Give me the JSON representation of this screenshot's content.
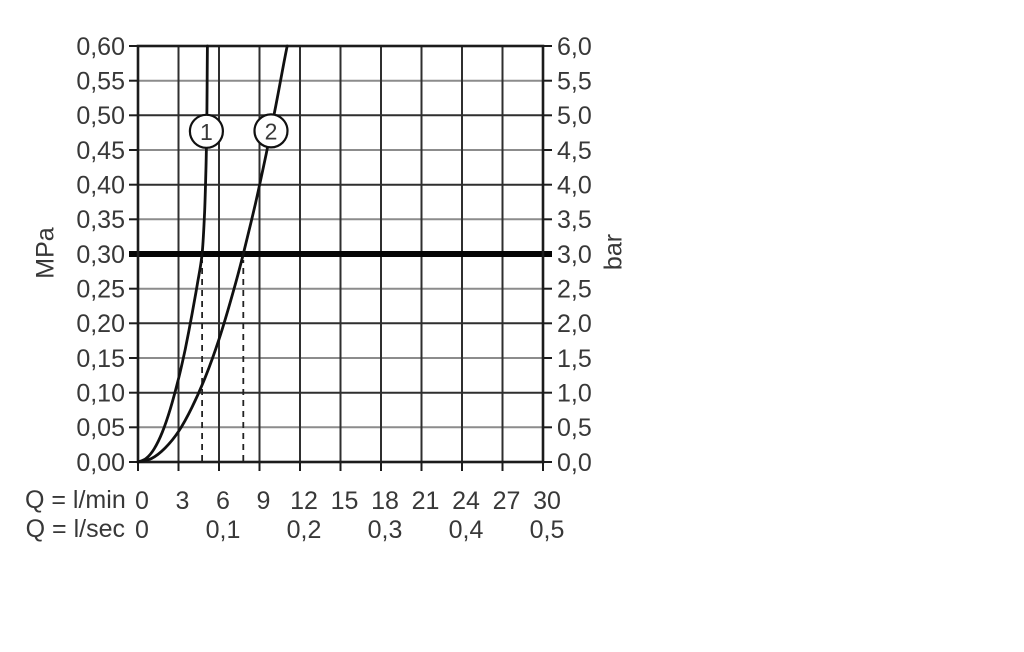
{
  "chart_data": {
    "type": "line",
    "grid": true,
    "legend": "none",
    "y_axis_left": {
      "unit": "MPa",
      "min": 0,
      "max": 0.6,
      "step": 0.05,
      "tick_labels": [
        "0,60",
        "0,55",
        "0,50",
        "0,45",
        "0,40",
        "0,35",
        "0,30",
        "0,25",
        "0,20",
        "0,15",
        "0,10",
        "0,05",
        "0,00"
      ]
    },
    "y_axis_right": {
      "unit": "bar",
      "min": 0,
      "max": 6,
      "step": 0.5,
      "tick_labels": [
        "6,0",
        "5,5",
        "5,0",
        "4,5",
        "4,0",
        "3,5",
        "3,0",
        "2,5",
        "2,0",
        "1,5",
        "1,0",
        "0,5",
        "0,0"
      ]
    },
    "x_axis_primary": {
      "label": "Q = l/min",
      "min": 0,
      "max": 30,
      "step": 3,
      "tick_values": [
        0,
        3,
        6,
        9,
        12,
        15,
        18,
        21,
        24,
        27,
        30
      ],
      "tick_labels": [
        "0",
        "3",
        "6",
        "9",
        "12",
        "15",
        "18",
        "21",
        "24",
        "27",
        "30"
      ]
    },
    "x_axis_secondary": {
      "label": "Q = l/sec",
      "tick_labels": [
        "0",
        "0,1",
        "0,2",
        "0,3",
        "0,4",
        "0,5"
      ],
      "tick_positions_lmin": [
        0,
        6,
        12,
        18,
        24,
        30
      ]
    },
    "reference_line": {
      "mpa": 0.3,
      "bar": 3.0
    },
    "dashed_guides": [
      {
        "curve": "1",
        "lmin": 4.75,
        "top_mpa": 0.3
      },
      {
        "curve": "2",
        "lmin": 7.8,
        "top_mpa": 0.3
      }
    ],
    "series": [
      {
        "label": "1",
        "flow_at_3_bar_lmin": 4.75,
        "points_lmin_mpa": [
          [
            0,
            0
          ],
          [
            0.6,
            0.005
          ],
          [
            1.2,
            0.019
          ],
          [
            1.8,
            0.043
          ],
          [
            2.4,
            0.077
          ],
          [
            3.0,
            0.12
          ],
          [
            3.5,
            0.163
          ],
          [
            4.0,
            0.213
          ],
          [
            4.4,
            0.257
          ],
          [
            4.75,
            0.3
          ],
          [
            4.93,
            0.36
          ],
          [
            5.03,
            0.42
          ],
          [
            5.09,
            0.48
          ],
          [
            5.12,
            0.54
          ],
          [
            5.14,
            0.6
          ]
        ],
        "marker_lmin_mpa": [
          5.07,
          0.477
        ]
      },
      {
        "label": "2",
        "flow_at_3_bar_lmin": 7.8,
        "points_lmin_mpa": [
          [
            0,
            0
          ],
          [
            1,
            0.005
          ],
          [
            2,
            0.02
          ],
          [
            3,
            0.044
          ],
          [
            4,
            0.079
          ],
          [
            5,
            0.123
          ],
          [
            6,
            0.177
          ],
          [
            7,
            0.242
          ],
          [
            7.8,
            0.3
          ],
          [
            8.7,
            0.373
          ],
          [
            9.5,
            0.445
          ],
          [
            10.2,
            0.513
          ],
          [
            10.8,
            0.575
          ],
          [
            11.05,
            0.6
          ]
        ],
        "marker_lmin_mpa": [
          9.85,
          0.4775
        ]
      }
    ],
    "colors": {
      "major_grid": "#2f2f2f",
      "minor_grid": "#8c8c8c",
      "border": "#1c1c1c",
      "curve": "#111111",
      "reference_line": "#050505",
      "text": "#383838",
      "background": "#ffffff"
    }
  }
}
